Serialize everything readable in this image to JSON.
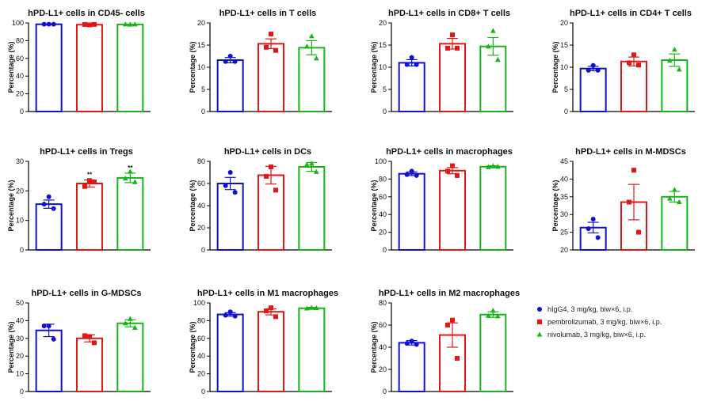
{
  "legend": {
    "entries": [
      {
        "label": "hIgG4, 3 mg/kg, biw×6, i.p.",
        "color": "#1010d0",
        "marker": "circle"
      },
      {
        "label": "pembrolizumab, 3 mg/kg, biw×6, i.p.",
        "color": "#e01818",
        "marker": "square"
      },
      {
        "label": "nivolumab, 3 mg/kg, biw×6, i.p.",
        "color": "#18b418",
        "marker": "triangle"
      }
    ]
  },
  "chart_data": [
    {
      "type": "bar",
      "title": "hPD-L1+ cells in CD45- cells",
      "ylabel": "Percentage (%)",
      "ylim": [
        0,
        100
      ],
      "yticks": [
        0,
        20,
        40,
        60,
        80,
        100
      ],
      "categories": [
        "hIgG4",
        "pembrolizumab",
        "nivolumab"
      ],
      "values": [
        98.5,
        98,
        98.3
      ],
      "errors": [
        0.3,
        0.5,
        0.3
      ],
      "points": [
        [
          98.5,
          98.5,
          98.5
        ],
        [
          97.8,
          98.3,
          98.3
        ],
        [
          98.2,
          98.4,
          98.4
        ]
      ],
      "annotations": [
        "",
        "",
        ""
      ]
    },
    {
      "type": "bar",
      "title": "hPD-L1+ cells in T cells",
      "ylabel": "Percentage (%)",
      "ylim": [
        0,
        20
      ],
      "yticks": [
        0,
        5,
        10,
        15,
        20
      ],
      "categories": [
        "hIgG4",
        "pembrolizumab",
        "nivolumab"
      ],
      "values": [
        11.6,
        15.3,
        14.4
      ],
      "errors": [
        0.6,
        1.1,
        1.6
      ],
      "points": [
        [
          12.5,
          11.3,
          11.3
        ],
        [
          17.5,
          14.5,
          13.8
        ],
        [
          17.0,
          14.7,
          12.0
        ]
      ],
      "annotations": [
        "",
        "",
        ""
      ]
    },
    {
      "type": "bar",
      "title": "hPD-L1+ cells in CD8+ T cells",
      "ylabel": "Percentage (%)",
      "ylim": [
        0,
        20
      ],
      "yticks": [
        0,
        5,
        10,
        15,
        20
      ],
      "categories": [
        "hIgG4",
        "pembrolizumab",
        "nivolumab"
      ],
      "values": [
        11.0,
        15.3,
        14.7
      ],
      "errors": [
        0.7,
        1.2,
        2.0
      ],
      "points": [
        [
          12.2,
          10.6,
          10.6
        ],
        [
          17.3,
          14.3,
          14.3
        ],
        [
          18.2,
          14.7,
          11.7
        ]
      ],
      "annotations": [
        "",
        "",
        ""
      ]
    },
    {
      "type": "bar",
      "title": "hPD-L1+ cells in CD4+ T cells",
      "ylabel": "Percentage (%)",
      "ylim": [
        0,
        20
      ],
      "yticks": [
        0,
        5,
        10,
        15,
        20
      ],
      "categories": [
        "hIgG4",
        "pembrolizumab",
        "nivolumab"
      ],
      "values": [
        9.7,
        11.3,
        11.6
      ],
      "errors": [
        0.5,
        1.0,
        1.4
      ],
      "points": [
        [
          10.4,
          9.3,
          9.3
        ],
        [
          12.8,
          11.0,
          10.5
        ],
        [
          14.0,
          11.5,
          9.5
        ]
      ],
      "annotations": [
        "",
        "",
        ""
      ]
    },
    {
      "type": "bar",
      "title": "hPD-L1+ cells in Tregs",
      "ylabel": "Percentage (%)",
      "ylim": [
        0,
        30
      ],
      "yticks": [
        0,
        10,
        20,
        30
      ],
      "categories": [
        "hIgG4",
        "pembrolizumab",
        "nivolumab"
      ],
      "values": [
        15.5,
        22.5,
        24.4
      ],
      "errors": [
        1.4,
        1.2,
        1.6
      ],
      "points": [
        [
          18.0,
          15.5,
          14.0
        ],
        [
          23.5,
          21.5,
          23.0
        ],
        [
          26.5,
          24.2,
          23.0
        ]
      ],
      "annotations": [
        "",
        "**",
        "**"
      ]
    },
    {
      "type": "bar",
      "title": "hPD-L1+ cells in DCs",
      "ylabel": "Percentage (%)",
      "ylim": [
        0,
        80
      ],
      "yticks": [
        0,
        20,
        40,
        60,
        80
      ],
      "categories": [
        "hIgG4",
        "pembrolizumab",
        "nivolumab"
      ],
      "values": [
        60.0,
        67.5,
        75.0
      ],
      "errors": [
        5.5,
        8.0,
        4.0
      ],
      "points": [
        [
          70.0,
          58.0,
          52.0
        ],
        [
          75.0,
          66.5,
          54.0
        ],
        [
          78.0,
          77.0,
          70.5
        ]
      ],
      "annotations": [
        "",
        "",
        ""
      ]
    },
    {
      "type": "bar",
      "title": "hPD-L1+ cells in macrophages",
      "ylabel": "Percentage (%)",
      "ylim": [
        0,
        100
      ],
      "yticks": [
        0,
        20,
        40,
        60,
        80,
        100
      ],
      "categories": [
        "hIgG4",
        "pembrolizumab",
        "nivolumab"
      ],
      "values": [
        86.0,
        89.5,
        94.0
      ],
      "errors": [
        2.0,
        3.5,
        1.0
      ],
      "points": [
        [
          89.0,
          85.0,
          84.0
        ],
        [
          95.0,
          89.0,
          84.0
        ],
        [
          94.5,
          93.5,
          94.0
        ]
      ],
      "annotations": [
        "",
        "",
        ""
      ]
    },
    {
      "type": "bar",
      "title": "hPD-L1+ cells in M-MDSCs",
      "ylabel": "Percentage (%)",
      "ylim": [
        20,
        45
      ],
      "yticks": [
        20,
        25,
        30,
        35,
        40,
        45
      ],
      "categories": [
        "hIgG4",
        "pembrolizumab",
        "nivolumab"
      ],
      "values": [
        26.3,
        33.5,
        35.0
      ],
      "errors": [
        1.5,
        5.0,
        1.5
      ],
      "points": [
        [
          28.7,
          26.0,
          23.5
        ],
        [
          42.5,
          33.5,
          25.0
        ],
        [
          37.0,
          34.5,
          33.5
        ]
      ],
      "annotations": [
        "",
        "",
        ""
      ]
    },
    {
      "type": "bar",
      "title": "hPD-L1+ cells in G-MDSCs",
      "ylabel": "Percentage (%)",
      "ylim": [
        0,
        50
      ],
      "yticks": [
        0,
        10,
        20,
        30,
        40,
        50
      ],
      "categories": [
        "hIgG4",
        "pembrolizumab",
        "nivolumab"
      ],
      "values": [
        34.5,
        30.0,
        38.5
      ],
      "errors": [
        3.5,
        2.0,
        2.0
      ],
      "points": [
        [
          37.0,
          37.0,
          29.5
        ],
        [
          31.0,
          31.5,
          27.5
        ],
        [
          41.0,
          38.5,
          36.0
        ]
      ],
      "annotations": [
        "",
        "",
        ""
      ]
    },
    {
      "type": "bar",
      "title": "hPD-L1+ cells in M1 macrophages",
      "ylabel": "Percentage (%)",
      "ylim": [
        0,
        100
      ],
      "yticks": [
        0,
        20,
        40,
        60,
        80,
        100
      ],
      "categories": [
        "hIgG4",
        "pembrolizumab",
        "nivolumab"
      ],
      "values": [
        87.0,
        90.0,
        94.0
      ],
      "errors": [
        2.0,
        3.5,
        1.0
      ],
      "points": [
        [
          90.0,
          86.0,
          85.0
        ],
        [
          94.5,
          91.0,
          84.5
        ],
        [
          94.5,
          93.8,
          94.2
        ]
      ],
      "annotations": [
        "",
        "",
        ""
      ]
    },
    {
      "type": "bar",
      "title": "hPD-L1+ cells in M2 macrophages",
      "ylabel": "Percentage (%)",
      "ylim": [
        0,
        80
      ],
      "yticks": [
        0,
        20,
        40,
        60,
        80
      ],
      "categories": [
        "hIgG4",
        "pembrolizumab",
        "nivolumab"
      ],
      "values": [
        44.0,
        51.0,
        69.5
      ],
      "errors": [
        2.0,
        11.0,
        2.5
      ],
      "points": [
        [
          45.5,
          43.5,
          42.5
        ],
        [
          64.5,
          60.0,
          30.0
        ],
        [
          73.0,
          68.5,
          68.0
        ]
      ],
      "annotations": [
        "",
        "",
        ""
      ]
    }
  ]
}
